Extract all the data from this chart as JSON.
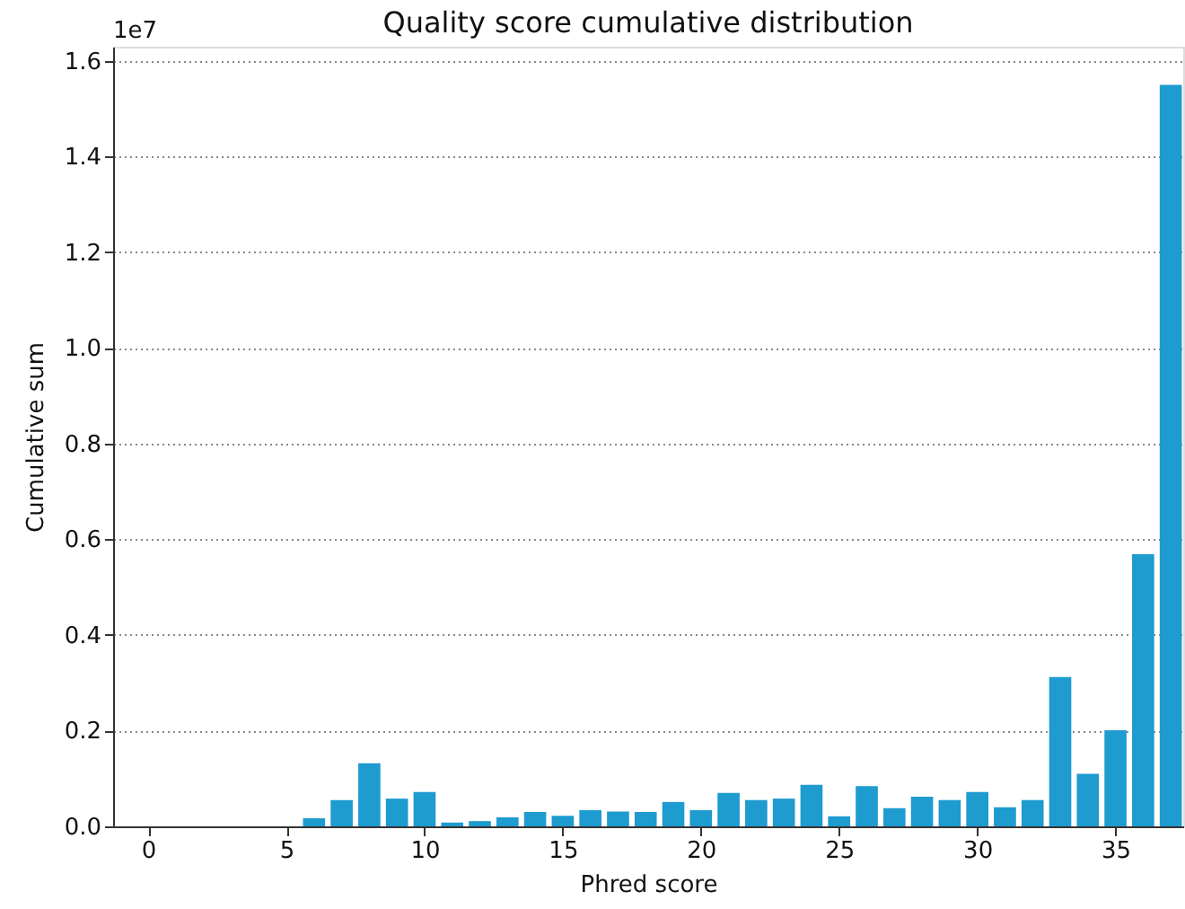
{
  "chart_data": {
    "type": "bar",
    "title": "Quality score cumulative distribution",
    "xlabel": "Phred score",
    "ylabel": "Cumulative sum",
    "annotations": [
      "1e7"
    ],
    "x": [
      6,
      7,
      8,
      9,
      10,
      11,
      12,
      13,
      14,
      15,
      16,
      17,
      18,
      19,
      20,
      21,
      22,
      23,
      24,
      25,
      26,
      27,
      28,
      29,
      30,
      31,
      32,
      33,
      34,
      35,
      36,
      37
    ],
    "values": [
      0.017,
      0.055,
      0.132,
      0.058,
      0.072,
      0.008,
      0.011,
      0.019,
      0.03,
      0.022,
      0.034,
      0.031,
      0.03,
      0.051,
      0.034,
      0.07,
      0.055,
      0.058,
      0.087,
      0.021,
      0.084,
      0.038,
      0.062,
      0.055,
      0.072,
      0.04,
      0.055,
      0.312,
      0.11,
      0.201,
      0.569,
      1.55
    ],
    "color": "#1e9bcf",
    "xlim": [
      -1.27,
      37.45
    ],
    "xticks": [
      0,
      5,
      10,
      15,
      20,
      25,
      30,
      35
    ],
    "ylim": [
      0,
      1.63
    ],
    "yticks": [
      {
        "value": 0,
        "label": "0.0"
      },
      0.2,
      0.4,
      0.6,
      0.8,
      {
        "value": 1,
        "label": "1.0"
      },
      1.2,
      1.4,
      1.6
    ],
    "grid": "y"
  }
}
